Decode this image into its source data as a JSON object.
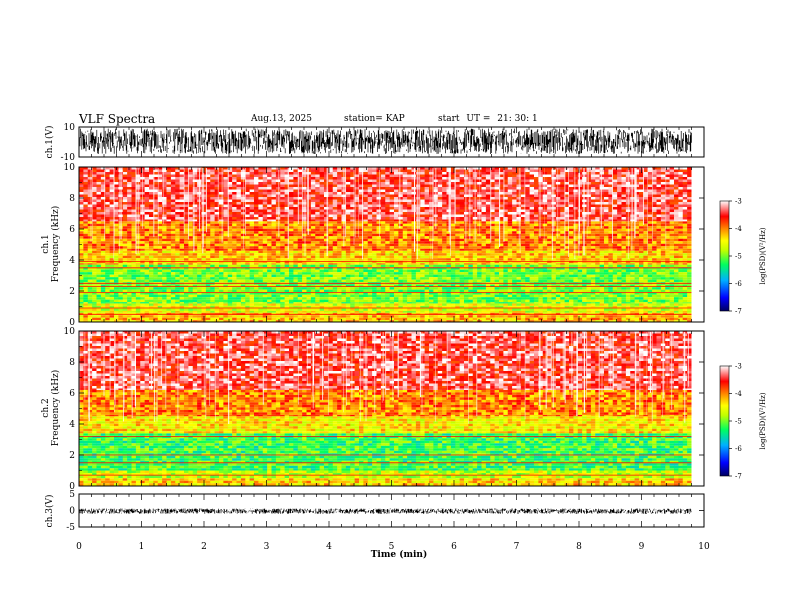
{
  "header": {
    "title": "VLF Spectra",
    "date": "Aug.13, 2025",
    "station": "station= KAP",
    "start_label": "start",
    "ut_label": "UT  =",
    "start_time": "21: 30: 1"
  },
  "chart_data": [
    {
      "type": "line",
      "name": "ch.1 waveform",
      "ylabel": "ch.1(V)",
      "ylim": [
        -10,
        10
      ],
      "yticks": [
        "10",
        "-10"
      ],
      "xlim": [
        0,
        10
      ],
      "visible_range": [
        -8,
        9
      ],
      "duration_min": 9.8
    },
    {
      "type": "heatmap",
      "name": "ch.1 spectrogram",
      "ylabel": "ch.1\nFrequency (kHz)",
      "ylabel_line1": "ch.1",
      "ylabel_line2": "Frequency (kHz)",
      "ylim": [
        0,
        10
      ],
      "yticks": [
        "0",
        "2",
        "4",
        "6",
        "8",
        "10"
      ],
      "xlim": [
        0,
        10
      ],
      "duration_min": 9.8,
      "zlim": [
        -7,
        -3
      ],
      "colorbar": {
        "label": "log(PSD)(V²/Hz)",
        "ticks": [
          "-3",
          "-4",
          "-5",
          "-6",
          "-7"
        ]
      },
      "bands_kHz": [
        {
          "from": 0.0,
          "to": 0.6,
          "level": -4.2
        },
        {
          "from": 0.6,
          "to": 1.2,
          "level": -4.6
        },
        {
          "from": 1.2,
          "to": 3.7,
          "level": -5.0
        },
        {
          "from": 3.7,
          "to": 4.6,
          "level": -4.3
        },
        {
          "from": 4.6,
          "to": 6.5,
          "level": -4.0
        },
        {
          "from": 6.5,
          "to": 10.0,
          "level": -3.4
        }
      ],
      "lines_kHz": [
        0.5,
        0.9,
        1.9,
        2.3,
        2.5,
        3.5,
        3.9
      ]
    },
    {
      "type": "heatmap",
      "name": "ch.2 spectrogram",
      "ylabel": "ch.2\nFrequency (kHz)",
      "ylabel_line1": "ch.2",
      "ylabel_line2": "Frequency (kHz)",
      "ylim": [
        0,
        10
      ],
      "yticks": [
        "0",
        "2",
        "4",
        "6",
        "8",
        "10"
      ],
      "xlim": [
        0,
        10
      ],
      "duration_min": 9.8,
      "zlim": [
        -7,
        -3
      ],
      "colorbar": {
        "label": "log(PSD)(V²/Hz)",
        "ticks": [
          "-3",
          "-4",
          "-5",
          "-6",
          "-7"
        ]
      },
      "bands_kHz": [
        {
          "from": 0.0,
          "to": 0.5,
          "level": -4.3
        },
        {
          "from": 0.5,
          "to": 1.0,
          "level": -4.7
        },
        {
          "from": 1.0,
          "to": 3.4,
          "level": -5.2
        },
        {
          "from": 3.4,
          "to": 4.5,
          "level": -4.4
        },
        {
          "from": 4.5,
          "to": 6.2,
          "level": -4.0
        },
        {
          "from": 6.2,
          "to": 10.0,
          "level": -3.4
        }
      ],
      "lines_kHz": [
        0.7,
        1.5,
        2.0,
        3.2
      ]
    },
    {
      "type": "line",
      "name": "ch.3 waveform",
      "ylabel": "ch.3(V)",
      "ylim": [
        -5,
        5
      ],
      "yticks": [
        "5",
        "0",
        "-5"
      ],
      "xlim": [
        0,
        10
      ],
      "visible_range": [
        -1,
        0.6
      ],
      "duration_min": 9.8,
      "xlabel": "Time  (min)",
      "xticks": [
        "0",
        "1",
        "2",
        "3",
        "4",
        "5",
        "6",
        "7",
        "8",
        "9",
        "10"
      ]
    }
  ],
  "colors": {
    "waveform": "#000000",
    "frame": "#000000",
    "colormap": [
      "#000060",
      "#0000ff",
      "#00b0ff",
      "#00ff60",
      "#c0ff00",
      "#ffff00",
      "#ff9000",
      "#ff0000",
      "#ffffff"
    ]
  }
}
